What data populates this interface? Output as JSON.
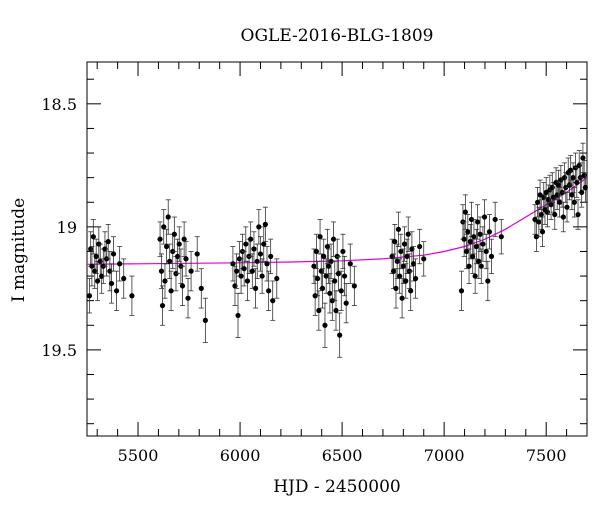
{
  "chart_data": {
    "type": "scatter",
    "title": "OGLE-2016-BLG-1809",
    "xlabel": "HJD - 2450000",
    "ylabel": "I magnitude",
    "xlim": [
      5250,
      7700
    ],
    "ylim": [
      19.85,
      18.33
    ],
    "y_inverted": true,
    "x_ticks": [
      5500,
      6000,
      6500,
      7000,
      7500
    ],
    "x_tick_labels": [
      "5500",
      "6000",
      "6500",
      "7000",
      "7500"
    ],
    "y_ticks": [
      18.5,
      19,
      19.5
    ],
    "y_tick_labels": [
      "18.5",
      "19",
      "19.5"
    ],
    "x_minor_step": 100,
    "y_minor_step": 0.1,
    "grid": false,
    "series": [
      {
        "kind": "points_with_errorbars",
        "marker_color": "#000000",
        "points": [
          {
            "x": 5262,
            "y": 19.28,
            "err": 0.07
          },
          {
            "x": 5268,
            "y": 19.09,
            "err": 0.07
          },
          {
            "x": 5274,
            "y": 19.16,
            "err": 0.08
          },
          {
            "x": 5281,
            "y": 19.04,
            "err": 0.07
          },
          {
            "x": 5288,
            "y": 19.18,
            "err": 0.07
          },
          {
            "x": 5295,
            "y": 19.12,
            "err": 0.07
          },
          {
            "x": 5302,
            "y": 19.22,
            "err": 0.08
          },
          {
            "x": 5308,
            "y": 19.07,
            "err": 0.07
          },
          {
            "x": 5315,
            "y": 19.14,
            "err": 0.07
          },
          {
            "x": 5322,
            "y": 19.2,
            "err": 0.07
          },
          {
            "x": 5330,
            "y": 19.16,
            "err": 0.07
          },
          {
            "x": 5338,
            "y": 19.09,
            "err": 0.07
          },
          {
            "x": 5346,
            "y": 19.13,
            "err": 0.07
          },
          {
            "x": 5354,
            "y": 19.06,
            "err": 0.07
          },
          {
            "x": 5362,
            "y": 19.18,
            "err": 0.08
          },
          {
            "x": 5370,
            "y": 19.23,
            "err": 0.08
          },
          {
            "x": 5380,
            "y": 19.11,
            "err": 0.07
          },
          {
            "x": 5395,
            "y": 19.26,
            "err": 0.08
          },
          {
            "x": 5410,
            "y": 19.15,
            "err": 0.07
          },
          {
            "x": 5430,
            "y": 19.21,
            "err": 0.08
          },
          {
            "x": 5470,
            "y": 19.28,
            "err": 0.08
          },
          {
            "x": 5608,
            "y": 19.05,
            "err": 0.07
          },
          {
            "x": 5615,
            "y": 19.18,
            "err": 0.07
          },
          {
            "x": 5620,
            "y": 19.32,
            "err": 0.08
          },
          {
            "x": 5626,
            "y": 19.0,
            "err": 0.07
          },
          {
            "x": 5632,
            "y": 19.22,
            "err": 0.07
          },
          {
            "x": 5640,
            "y": 19.08,
            "err": 0.07
          },
          {
            "x": 5648,
            "y": 18.96,
            "err": 0.07
          },
          {
            "x": 5655,
            "y": 19.14,
            "err": 0.07
          },
          {
            "x": 5662,
            "y": 19.26,
            "err": 0.08
          },
          {
            "x": 5670,
            "y": 19.1,
            "err": 0.07
          },
          {
            "x": 5678,
            "y": 19.03,
            "err": 0.07
          },
          {
            "x": 5686,
            "y": 19.19,
            "err": 0.07
          },
          {
            "x": 5694,
            "y": 19.12,
            "err": 0.07
          },
          {
            "x": 5702,
            "y": 19.07,
            "err": 0.07
          },
          {
            "x": 5710,
            "y": 19.16,
            "err": 0.07
          },
          {
            "x": 5718,
            "y": 19.24,
            "err": 0.08
          },
          {
            "x": 5726,
            "y": 19.05,
            "err": 0.07
          },
          {
            "x": 5735,
            "y": 19.13,
            "err": 0.07
          },
          {
            "x": 5745,
            "y": 19.29,
            "err": 0.08
          },
          {
            "x": 5760,
            "y": 19.18,
            "err": 0.08
          },
          {
            "x": 5790,
            "y": 19.11,
            "err": 0.07
          },
          {
            "x": 5810,
            "y": 19.25,
            "err": 0.08
          },
          {
            "x": 5830,
            "y": 19.38,
            "err": 0.09
          },
          {
            "x": 5965,
            "y": 19.15,
            "err": 0.07
          },
          {
            "x": 5975,
            "y": 19.24,
            "err": 0.08
          },
          {
            "x": 5983,
            "y": 19.18,
            "err": 0.07
          },
          {
            "x": 5990,
            "y": 19.36,
            "err": 0.09
          },
          {
            "x": 5997,
            "y": 19.13,
            "err": 0.07
          },
          {
            "x": 6005,
            "y": 19.2,
            "err": 0.07
          },
          {
            "x": 6012,
            "y": 19.1,
            "err": 0.07
          },
          {
            "x": 6020,
            "y": 19.17,
            "err": 0.07
          },
          {
            "x": 6028,
            "y": 19.07,
            "err": 0.07
          },
          {
            "x": 6036,
            "y": 19.22,
            "err": 0.08
          },
          {
            "x": 6044,
            "y": 19.12,
            "err": 0.07
          },
          {
            "x": 6052,
            "y": 19.05,
            "err": 0.07
          },
          {
            "x": 6060,
            "y": 19.18,
            "err": 0.07
          },
          {
            "x": 6068,
            "y": 19.09,
            "err": 0.07
          },
          {
            "x": 6076,
            "y": 19.25,
            "err": 0.08
          },
          {
            "x": 6084,
            "y": 19.14,
            "err": 0.07
          },
          {
            "x": 6092,
            "y": 19.0,
            "err": 0.07
          },
          {
            "x": 6100,
            "y": 19.11,
            "err": 0.07
          },
          {
            "x": 6108,
            "y": 19.2,
            "err": 0.07
          },
          {
            "x": 6116,
            "y": 19.07,
            "err": 0.07
          },
          {
            "x": 6124,
            "y": 18.99,
            "err": 0.07
          },
          {
            "x": 6132,
            "y": 19.15,
            "err": 0.07
          },
          {
            "x": 6140,
            "y": 19.26,
            "err": 0.08
          },
          {
            "x": 6150,
            "y": 19.12,
            "err": 0.07
          },
          {
            "x": 6160,
            "y": 19.3,
            "err": 0.08
          },
          {
            "x": 6180,
            "y": 19.21,
            "err": 0.08
          },
          {
            "x": 6362,
            "y": 19.16,
            "err": 0.07
          },
          {
            "x": 6368,
            "y": 19.28,
            "err": 0.08
          },
          {
            "x": 6374,
            "y": 19.1,
            "err": 0.07
          },
          {
            "x": 6380,
            "y": 19.21,
            "err": 0.07
          },
          {
            "x": 6386,
            "y": 19.34,
            "err": 0.08
          },
          {
            "x": 6392,
            "y": 19.04,
            "err": 0.07
          },
          {
            "x": 6398,
            "y": 19.18,
            "err": 0.07
          },
          {
            "x": 6404,
            "y": 19.25,
            "err": 0.08
          },
          {
            "x": 6410,
            "y": 19.12,
            "err": 0.07
          },
          {
            "x": 6416,
            "y": 19.4,
            "err": 0.09
          },
          {
            "x": 6422,
            "y": 19.2,
            "err": 0.07
          },
          {
            "x": 6428,
            "y": 19.08,
            "err": 0.07
          },
          {
            "x": 6434,
            "y": 19.16,
            "err": 0.07
          },
          {
            "x": 6440,
            "y": 19.27,
            "err": 0.08
          },
          {
            "x": 6446,
            "y": 19.14,
            "err": 0.07
          },
          {
            "x": 6452,
            "y": 19.3,
            "err": 0.08
          },
          {
            "x": 6458,
            "y": 19.05,
            "err": 0.07
          },
          {
            "x": 6464,
            "y": 19.22,
            "err": 0.08
          },
          {
            "x": 6470,
            "y": 19.34,
            "err": 0.08
          },
          {
            "x": 6476,
            "y": 19.12,
            "err": 0.07
          },
          {
            "x": 6482,
            "y": 19.19,
            "err": 0.07
          },
          {
            "x": 6488,
            "y": 19.44,
            "err": 0.09
          },
          {
            "x": 6496,
            "y": 19.26,
            "err": 0.08
          },
          {
            "x": 6504,
            "y": 19.1,
            "err": 0.07
          },
          {
            "x": 6512,
            "y": 19.2,
            "err": 0.08
          },
          {
            "x": 6520,
            "y": 19.31,
            "err": 0.08
          },
          {
            "x": 6540,
            "y": 19.15,
            "err": 0.08
          },
          {
            "x": 6560,
            "y": 19.24,
            "err": 0.08
          },
          {
            "x": 6745,
            "y": 19.12,
            "err": 0.07
          },
          {
            "x": 6752,
            "y": 19.18,
            "err": 0.07
          },
          {
            "x": 6758,
            "y": 19.06,
            "err": 0.07
          },
          {
            "x": 6764,
            "y": 19.25,
            "err": 0.08
          },
          {
            "x": 6770,
            "y": 19.14,
            "err": 0.07
          },
          {
            "x": 6776,
            "y": 19.01,
            "err": 0.07
          },
          {
            "x": 6782,
            "y": 19.2,
            "err": 0.07
          },
          {
            "x": 6788,
            "y": 19.1,
            "err": 0.07
          },
          {
            "x": 6794,
            "y": 19.29,
            "err": 0.08
          },
          {
            "x": 6800,
            "y": 19.16,
            "err": 0.07
          },
          {
            "x": 6806,
            "y": 19.07,
            "err": 0.07
          },
          {
            "x": 6812,
            "y": 19.22,
            "err": 0.07
          },
          {
            "x": 6818,
            "y": 19.12,
            "err": 0.07
          },
          {
            "x": 6824,
            "y": 19.03,
            "err": 0.07
          },
          {
            "x": 6830,
            "y": 19.18,
            "err": 0.07
          },
          {
            "x": 6836,
            "y": 19.26,
            "err": 0.08
          },
          {
            "x": 6842,
            "y": 19.09,
            "err": 0.07
          },
          {
            "x": 6850,
            "y": 19.15,
            "err": 0.07
          },
          {
            "x": 6860,
            "y": 19.21,
            "err": 0.08
          },
          {
            "x": 6880,
            "y": 19.08,
            "err": 0.07
          },
          {
            "x": 6900,
            "y": 19.13,
            "err": 0.07
          },
          {
            "x": 7085,
            "y": 19.26,
            "err": 0.08
          },
          {
            "x": 7092,
            "y": 18.98,
            "err": 0.07
          },
          {
            "x": 7098,
            "y": 19.05,
            "err": 0.07
          },
          {
            "x": 7104,
            "y": 18.94,
            "err": 0.07
          },
          {
            "x": 7110,
            "y": 19.1,
            "err": 0.07
          },
          {
            "x": 7116,
            "y": 19.02,
            "err": 0.07
          },
          {
            "x": 7122,
            "y": 19.16,
            "err": 0.07
          },
          {
            "x": 7128,
            "y": 19.06,
            "err": 0.07
          },
          {
            "x": 7134,
            "y": 18.97,
            "err": 0.07
          },
          {
            "x": 7140,
            "y": 19.12,
            "err": 0.07
          },
          {
            "x": 7146,
            "y": 19.04,
            "err": 0.07
          },
          {
            "x": 7152,
            "y": 19.2,
            "err": 0.07
          },
          {
            "x": 7158,
            "y": 19.08,
            "err": 0.07
          },
          {
            "x": 7164,
            "y": 18.98,
            "err": 0.07
          },
          {
            "x": 7170,
            "y": 19.14,
            "err": 0.07
          },
          {
            "x": 7176,
            "y": 19.03,
            "err": 0.07
          },
          {
            "x": 7182,
            "y": 19.16,
            "err": 0.07
          },
          {
            "x": 7190,
            "y": 19.07,
            "err": 0.07
          },
          {
            "x": 7198,
            "y": 18.96,
            "err": 0.07
          },
          {
            "x": 7206,
            "y": 19.1,
            "err": 0.07
          },
          {
            "x": 7214,
            "y": 19.22,
            "err": 0.08
          },
          {
            "x": 7222,
            "y": 19.02,
            "err": 0.07
          },
          {
            "x": 7232,
            "y": 19.12,
            "err": 0.07
          },
          {
            "x": 7250,
            "y": 18.97,
            "err": 0.07
          },
          {
            "x": 7280,
            "y": 19.04,
            "err": 0.07
          },
          {
            "x": 7445,
            "y": 18.97,
            "err": 0.06
          },
          {
            "x": 7452,
            "y": 19.04,
            "err": 0.06
          },
          {
            "x": 7458,
            "y": 18.9,
            "err": 0.06
          },
          {
            "x": 7464,
            "y": 18.98,
            "err": 0.06
          },
          {
            "x": 7470,
            "y": 18.87,
            "err": 0.06
          },
          {
            "x": 7476,
            "y": 18.95,
            "err": 0.06
          },
          {
            "x": 7482,
            "y": 19.02,
            "err": 0.06
          },
          {
            "x": 7488,
            "y": 18.88,
            "err": 0.06
          },
          {
            "x": 7494,
            "y": 18.93,
            "err": 0.06
          },
          {
            "x": 7500,
            "y": 18.86,
            "err": 0.06
          },
          {
            "x": 7506,
            "y": 18.94,
            "err": 0.06
          },
          {
            "x": 7512,
            "y": 18.89,
            "err": 0.06
          },
          {
            "x": 7518,
            "y": 18.85,
            "err": 0.06
          },
          {
            "x": 7524,
            "y": 18.91,
            "err": 0.06
          },
          {
            "x": 7530,
            "y": 18.84,
            "err": 0.06
          },
          {
            "x": 7536,
            "y": 18.88,
            "err": 0.06
          },
          {
            "x": 7542,
            "y": 18.95,
            "err": 0.06
          },
          {
            "x": 7548,
            "y": 18.82,
            "err": 0.06
          },
          {
            "x": 7554,
            "y": 18.87,
            "err": 0.06
          },
          {
            "x": 7560,
            "y": 18.83,
            "err": 0.06
          },
          {
            "x": 7566,
            "y": 18.9,
            "err": 0.06
          },
          {
            "x": 7572,
            "y": 18.81,
            "err": 0.06
          },
          {
            "x": 7578,
            "y": 18.86,
            "err": 0.06
          },
          {
            "x": 7584,
            "y": 18.96,
            "err": 0.06
          },
          {
            "x": 7590,
            "y": 18.8,
            "err": 0.06
          },
          {
            "x": 7596,
            "y": 18.84,
            "err": 0.06
          },
          {
            "x": 7602,
            "y": 18.92,
            "err": 0.06
          },
          {
            "x": 7608,
            "y": 18.78,
            "err": 0.06
          },
          {
            "x": 7614,
            "y": 18.83,
            "err": 0.06
          },
          {
            "x": 7620,
            "y": 18.77,
            "err": 0.06
          },
          {
            "x": 7626,
            "y": 18.87,
            "err": 0.06
          },
          {
            "x": 7632,
            "y": 18.8,
            "err": 0.06
          },
          {
            "x": 7638,
            "y": 18.9,
            "err": 0.06
          },
          {
            "x": 7644,
            "y": 18.76,
            "err": 0.06
          },
          {
            "x": 7650,
            "y": 18.82,
            "err": 0.06
          },
          {
            "x": 7656,
            "y": 18.95,
            "err": 0.06
          },
          {
            "x": 7662,
            "y": 18.75,
            "err": 0.06
          },
          {
            "x": 7668,
            "y": 18.8,
            "err": 0.06
          },
          {
            "x": 7674,
            "y": 18.86,
            "err": 0.06
          },
          {
            "x": 7680,
            "y": 18.72,
            "err": 0.06
          },
          {
            "x": 7686,
            "y": 18.79,
            "err": 0.06
          },
          {
            "x": 7692,
            "y": 18.84,
            "err": 0.06
          }
        ]
      },
      {
        "kind": "model_curve",
        "color": "#dd00dd",
        "points": [
          {
            "x": 5250,
            "y": 19.152
          },
          {
            "x": 5500,
            "y": 19.15
          },
          {
            "x": 5750,
            "y": 19.148
          },
          {
            "x": 6000,
            "y": 19.146
          },
          {
            "x": 6250,
            "y": 19.143
          },
          {
            "x": 6500,
            "y": 19.138
          },
          {
            "x": 6700,
            "y": 19.13
          },
          {
            "x": 6900,
            "y": 19.115
          },
          {
            "x": 7000,
            "y": 19.1
          },
          {
            "x": 7100,
            "y": 19.08
          },
          {
            "x": 7200,
            "y": 19.05
          },
          {
            "x": 7300,
            "y": 19.01
          },
          {
            "x": 7400,
            "y": 18.96
          },
          {
            "x": 7500,
            "y": 18.91
          },
          {
            "x": 7600,
            "y": 18.86
          },
          {
            "x": 7700,
            "y": 18.8
          }
        ]
      }
    ]
  }
}
